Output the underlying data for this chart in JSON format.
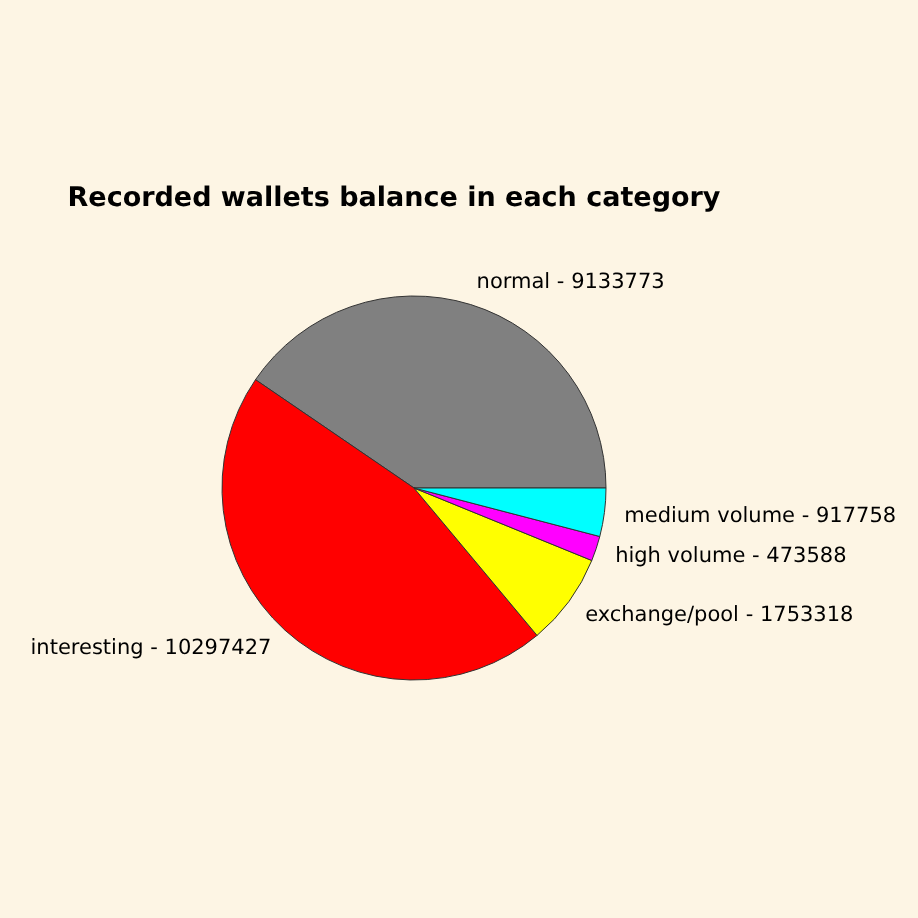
{
  "chart_data": {
    "type": "pie",
    "title": "Recorded wallets balance in each category",
    "categories": [
      "normal -",
      "interesting -",
      "exchange/pool -",
      "high volume -",
      "medium volume -"
    ],
    "values": [
      9133773,
      10297427,
      1753318,
      473588,
      917758
    ],
    "colors": [
      "#808080",
      "#ff0000",
      "#ffff00",
      "#ff00ff",
      "#00ffff"
    ],
    "data_labels": true
  }
}
